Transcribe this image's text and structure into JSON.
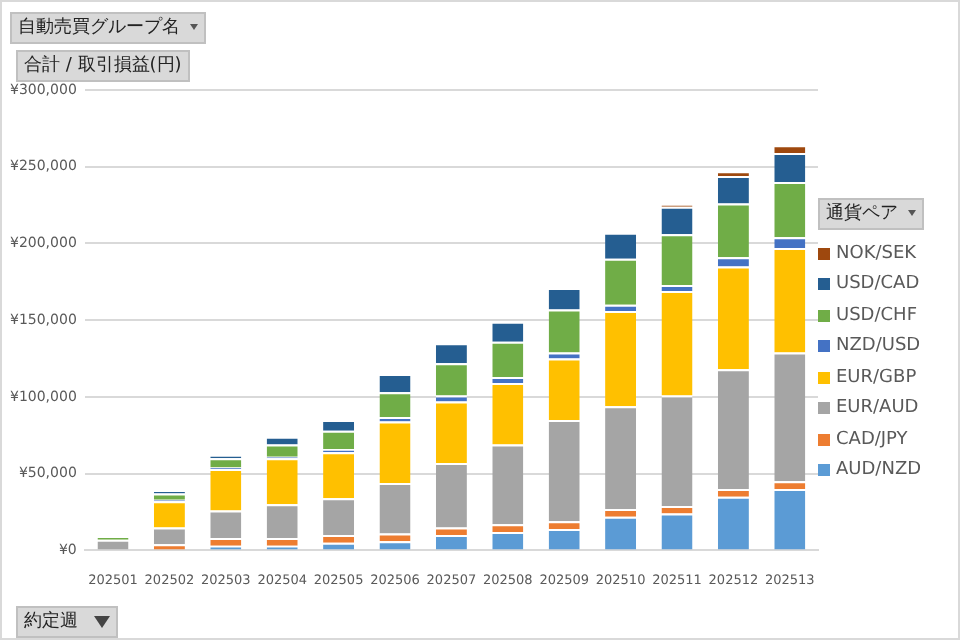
{
  "chart_data": {
    "type": "bar",
    "stacked": true,
    "ylabel": "合計 / 取引損益(円)",
    "xlabel": "約定週",
    "legend_title": "通貨ペア",
    "annotations": [
      "自動売買グループ名"
    ],
    "categories": [
      "202501",
      "202502",
      "202503",
      "202504",
      "202505",
      "202506",
      "202507",
      "202508",
      "202509",
      "202510",
      "202511",
      "202512",
      "202513"
    ],
    "ylim": [
      0,
      300000
    ],
    "yticks": [
      {
        "value": 0,
        "label": "¥0"
      },
      {
        "value": 50000,
        "label": "¥50,000"
      },
      {
        "value": 100000,
        "label": "¥100,000"
      },
      {
        "value": 150000,
        "label": "¥150,000"
      },
      {
        "value": 200000,
        "label": "¥200,000"
      },
      {
        "value": 250000,
        "label": "¥250,000"
      },
      {
        "value": 300000,
        "label": "¥300,000"
      }
    ],
    "grid": "y",
    "legend": "right",
    "series": [
      {
        "name": "AUD/NZD",
        "color": "#5b9bd5",
        "values": [
          null,
          null,
          3000,
          3000,
          5000,
          6000,
          10000,
          12000,
          14000,
          22000,
          24000,
          35000,
          40000
        ]
      },
      {
        "name": "CAD/JPY",
        "color": "#ed7d31",
        "values": [
          null,
          4000,
          5000,
          5000,
          5000,
          5000,
          5000,
          5000,
          5000,
          5000,
          5000,
          5000,
          5000
        ]
      },
      {
        "name": "EUR/AUD",
        "color": "#a5a5a5",
        "values": [
          7000,
          11000,
          18000,
          22000,
          24000,
          33000,
          42000,
          52000,
          66000,
          67000,
          72000,
          78000,
          84000
        ]
      },
      {
        "name": "EUR/GBP",
        "color": "#ffc000",
        "values": [
          null,
          17000,
          27000,
          30000,
          30000,
          40000,
          40000,
          40000,
          40000,
          62000,
          68000,
          67000,
          68000
        ]
      },
      {
        "name": "NZD/USD",
        "color": "#4472c4",
        "values": [
          null,
          1000,
          1000,
          1000,
          2000,
          3000,
          4000,
          4000,
          4000,
          4000,
          4000,
          6000,
          7000
        ]
      },
      {
        "name": "USD/CHF",
        "color": "#70ad47",
        "values": [
          2000,
          4000,
          6000,
          8000,
          12000,
          16000,
          21000,
          23000,
          28000,
          30000,
          33000,
          35000,
          36000
        ]
      },
      {
        "name": "USD/CAD",
        "color": "#255e91",
        "values": [
          null,
          2000,
          2000,
          5000,
          7000,
          12000,
          13000,
          13000,
          14000,
          17000,
          18000,
          18000,
          19000
        ]
      },
      {
        "name": "NOK/SEK",
        "color": "#9e480e",
        "values": [
          null,
          null,
          null,
          null,
          null,
          null,
          null,
          null,
          null,
          null,
          1000,
          3000,
          5000
        ]
      }
    ]
  }
}
